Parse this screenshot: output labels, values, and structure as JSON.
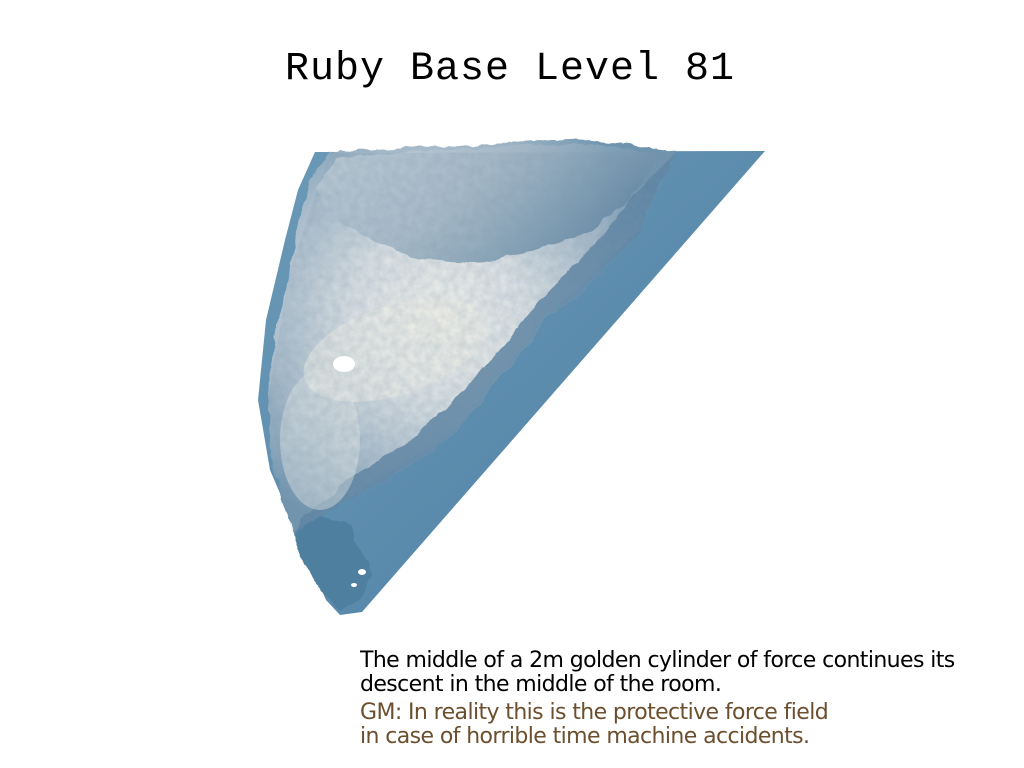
{
  "level": {
    "title": "Ruby Base Level 81"
  },
  "terrain": {
    "icon": "terrain-map-icon",
    "colors": {
      "water": "#5f8fae",
      "slope_dark": "#3f6e90",
      "highland": "#d6dfe4",
      "peak_glow": "#f4f2ea",
      "background": "#ffffff"
    }
  },
  "narration": {
    "story_line_1": "The middle of a 2m golden cylinder of force continues its",
    "story_line_2": "descent in the middle of the room.",
    "gm_line_1": "GM: In reality this is the protective force field",
    "gm_line_2": "in case of horrible time machine accidents.",
    "colors": {
      "story": "#000000",
      "gm": "#6b4f2e"
    }
  }
}
